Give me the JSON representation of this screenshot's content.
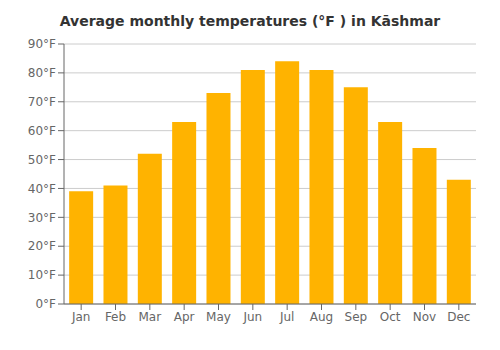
{
  "chart_data": {
    "type": "bar",
    "title": "Average monthly temperatures (°F ) in Kāshmar",
    "categories": [
      "Jan",
      "Feb",
      "Mar",
      "Apr",
      "May",
      "Jun",
      "Jul",
      "Aug",
      "Sep",
      "Oct",
      "Nov",
      "Dec"
    ],
    "values": [
      39,
      41,
      52,
      63,
      73,
      81,
      84,
      81,
      75,
      63,
      54,
      43
    ],
    "color": "#FFB300",
    "ylim": [
      0,
      90
    ],
    "yticks": [
      {
        "value": 0,
        "label": "0°F"
      },
      {
        "value": 10,
        "label": "10°F"
      },
      {
        "value": 20,
        "label": "20°F"
      },
      {
        "value": 30,
        "label": "30°F"
      },
      {
        "value": 40,
        "label": "40°F"
      },
      {
        "value": 50,
        "label": "50°F"
      },
      {
        "value": 60,
        "label": "60°F"
      },
      {
        "value": 70,
        "label": "70°F"
      },
      {
        "value": 80,
        "label": "80°F"
      },
      {
        "value": 90,
        "label": "90°F"
      }
    ],
    "grid": true
  }
}
